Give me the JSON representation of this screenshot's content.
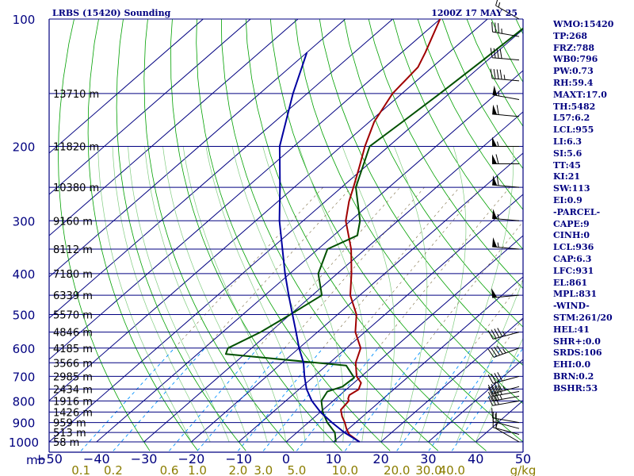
{
  "header": {
    "station": "LRBS (15420) Sounding",
    "time": "1200Z 17 MAY 25"
  },
  "indices": [
    "WMO:15420",
    "TP:268",
    "FRZ:788",
    "WB0:796",
    "PW:0.73",
    "RH:59.4",
    "MAXT:17.0",
    "TH:5482",
    "L57:6.2",
    "LCL:955",
    "LI:6.3",
    "SI:5.6",
    "TT:45",
    "KI:21",
    "SW:113",
    "EI:0.9",
    "-PARCEL-",
    "CAPE:9",
    "CINH:0",
    "LCL:936",
    "CAP:6.3",
    "LFC:931",
    "EL:861",
    "MPL:831",
    "-WIND-",
    "STM:261/20",
    "HEL:41",
    "SHR+:0.0",
    "SRDS:106",
    "EHI:0.0",
    "BRN:0.2",
    "BSHR:53"
  ],
  "chart_data": {
    "type": "line",
    "chart_kind": "skew-T log-p sounding",
    "y_unit_label": "mb",
    "pressure_range": [
      1000,
      100
    ],
    "pressure_scale": "log",
    "temperature_range_at_surface": [
      -50,
      50
    ],
    "pressure_labels": [
      "100",
      "200",
      "300",
      "400",
      "500",
      "600",
      "700",
      "800",
      "900",
      "1000"
    ],
    "temperature_ticks": [
      "−50",
      "−40",
      "−30",
      "−20",
      "−10",
      "0",
      "10",
      "20",
      "30",
      "40",
      "50"
    ],
    "height_labels": [
      {
        "p": 150,
        "label": "13710 m"
      },
      {
        "p": 200,
        "label": "11820 m"
      },
      {
        "p": 250,
        "label": "10380 m"
      },
      {
        "p": 300,
        "label": "9160 m"
      },
      {
        "p": 350,
        "label": "8112 m"
      },
      {
        "p": 400,
        "label": "7180 m"
      },
      {
        "p": 450,
        "label": "6339 m"
      },
      {
        "p": 500,
        "label": "5570 m"
      },
      {
        "p": 550,
        "label": "4846 m"
      },
      {
        "p": 600,
        "label": "4185 m"
      },
      {
        "p": 650,
        "label": "3566 m"
      },
      {
        "p": 700,
        "label": "2985 m"
      },
      {
        "p": 750,
        "label": "2434 m"
      },
      {
        "p": 800,
        "label": "1916 m"
      },
      {
        "p": 850,
        "label": "1426 m"
      },
      {
        "p": 900,
        "label": "959 m"
      },
      {
        "p": 950,
        "label": "513 m"
      },
      {
        "p": 1000,
        "label": "58 m"
      }
    ],
    "mixing_ratio_unit": "g/kg",
    "mixing_ratio_labels": [
      "0.1",
      "0.2",
      "0.6",
      "1.0",
      "2.0",
      "3.0",
      "5.0",
      "10.0",
      "20.0",
      "30.0",
      "40.0"
    ],
    "series": [
      {
        "name": "",
        "color": "#a00000",
        "points": [
          [
            1000,
            15.5
          ],
          [
            960,
            11.5
          ],
          [
            930,
            9.5
          ],
          [
            900,
            7.7
          ],
          [
            870,
            5.6
          ],
          [
            840,
            3.8
          ],
          [
            800,
            3.3
          ],
          [
            790,
            2.6
          ],
          [
            775,
            2.0
          ],
          [
            752,
            2.6
          ],
          [
            725,
            1.5
          ],
          [
            700,
            -1.0
          ],
          [
            650,
            -4.5
          ],
          [
            600,
            -7.0
          ],
          [
            550,
            -12
          ],
          [
            500,
            -16
          ],
          [
            450,
            -22
          ],
          [
            400,
            -27
          ],
          [
            350,
            -33
          ],
          [
            300,
            -41
          ],
          [
            270,
            -45
          ],
          [
            250,
            -47.5
          ],
          [
            225,
            -51
          ],
          [
            200,
            -55
          ],
          [
            175,
            -59
          ],
          [
            150,
            -62
          ],
          [
            130,
            -63
          ],
          [
            120,
            -65
          ],
          [
            100,
            -70
          ],
          [
            88,
            -73
          ],
          [
            80,
            -75
          ]
        ]
      },
      {
        "name": "",
        "color": "#005000",
        "points": [
          [
            1000,
            10.5
          ],
          [
            950,
            8.0
          ],
          [
            900,
            4.0
          ],
          [
            850,
            0.5
          ],
          [
            800,
            -2.5
          ],
          [
            780,
            -3.0
          ],
          [
            760,
            -3.5
          ],
          [
            740,
            -1.5
          ],
          [
            705,
            -1.2
          ],
          [
            660,
            -5.8
          ],
          [
            620,
            -34
          ],
          [
            600,
            -35
          ],
          [
            550,
            -32
          ],
          [
            500,
            -30
          ],
          [
            450,
            -28
          ],
          [
            400,
            -34
          ],
          [
            350,
            -38
          ],
          [
            325,
            -35
          ],
          [
            300,
            -38
          ],
          [
            250,
            -47
          ],
          [
            200,
            -54
          ],
          [
            175,
            -53
          ],
          [
            150,
            -52
          ],
          [
            125,
            -51
          ],
          [
            100,
            -50
          ],
          [
            90,
            -49
          ],
          [
            85,
            -47
          ]
        ]
      },
      {
        "name": "",
        "color": "#0000a0",
        "points": [
          [
            1000,
            15.5
          ],
          [
            950,
            10.0
          ],
          [
            900,
            5.0
          ],
          [
            850,
            0.0
          ],
          [
            800,
            -4.5
          ],
          [
            750,
            -8.5
          ],
          [
            700,
            -12
          ],
          [
            650,
            -15.5
          ],
          [
            600,
            -20
          ],
          [
            550,
            -24.5
          ],
          [
            500,
            -29.5
          ],
          [
            450,
            -35
          ],
          [
            400,
            -41
          ],
          [
            350,
            -47.5
          ],
          [
            300,
            -55
          ],
          [
            250,
            -63
          ],
          [
            200,
            -73
          ],
          [
            150,
            -83
          ],
          [
            120,
            -90
          ]
        ]
      }
    ],
    "wind_barbs": [
      {
        "p": 1000,
        "dir": 300,
        "spd": 10
      },
      {
        "p": 960,
        "dir": 285,
        "spd": 15
      },
      {
        "p": 930,
        "dir": 285,
        "spd": 20
      },
      {
        "p": 900,
        "dir": 280,
        "spd": 15
      },
      {
        "p": 800,
        "dir": 260,
        "spd": 30
      },
      {
        "p": 780,
        "dir": 260,
        "spd": 35
      },
      {
        "p": 760,
        "dir": 260,
        "spd": 40
      },
      {
        "p": 740,
        "dir": 255,
        "spd": 45
      },
      {
        "p": 700,
        "dir": 255,
        "spd": 40
      },
      {
        "p": 600,
        "dir": 250,
        "spd": 45
      },
      {
        "p": 550,
        "dir": 255,
        "spd": 45
      },
      {
        "p": 450,
        "dir": 265,
        "spd": 50
      },
      {
        "p": 350,
        "dir": 275,
        "spd": 55
      },
      {
        "p": 300,
        "dir": 275,
        "spd": 55
      },
      {
        "p": 250,
        "dir": 275,
        "spd": 60
      },
      {
        "p": 220,
        "dir": 270,
        "spd": 60
      },
      {
        "p": 200,
        "dir": 270,
        "spd": 55
      },
      {
        "p": 170,
        "dir": 275,
        "spd": 60
      },
      {
        "p": 155,
        "dir": 280,
        "spd": 55
      },
      {
        "p": 140,
        "dir": 275,
        "spd": 45
      },
      {
        "p": 125,
        "dir": 275,
        "spd": 40
      },
      {
        "p": 110,
        "dir": 280,
        "spd": 35
      },
      {
        "p": 100,
        "dir": 300,
        "spd": 15
      }
    ]
  }
}
